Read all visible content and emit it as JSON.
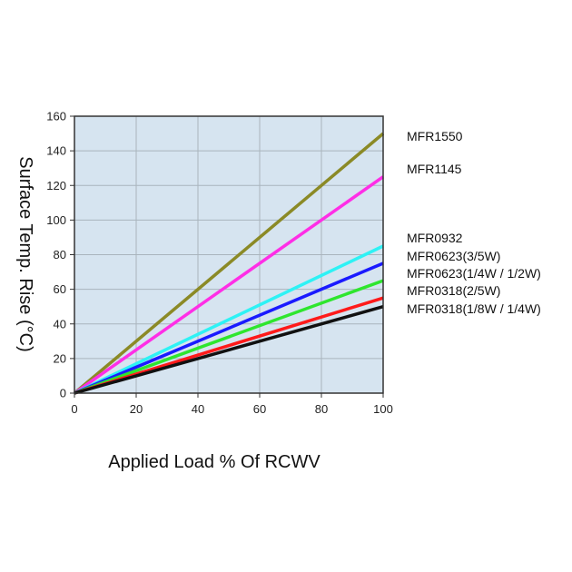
{
  "chart_data": {
    "type": "line",
    "title": "",
    "xlabel": "Applied Load % Of RCWV",
    "ylabel": "Surface Temp. Rise (°C)",
    "xlim": [
      0,
      100
    ],
    "ylim": [
      0,
      160
    ],
    "x_ticks": [
      "0",
      "20",
      "40",
      "60",
      "80",
      "100"
    ],
    "y_ticks": [
      "0",
      "20",
      "40",
      "60",
      "80",
      "100",
      "120",
      "140",
      "160"
    ],
    "grid": true,
    "legend_placement": "right",
    "plot_background": "#d6e4f0",
    "series": [
      {
        "name": "MFR1550",
        "color": "#8b8a26",
        "x": [
          0,
          100
        ],
        "y": [
          0,
          150
        ]
      },
      {
        "name": "MFR1145",
        "color": "#ff2ee6",
        "x": [
          0,
          100
        ],
        "y": [
          0,
          125
        ]
      },
      {
        "name": "MFR0932",
        "color": "#2ef2f5",
        "x": [
          0,
          100
        ],
        "y": [
          0,
          85
        ]
      },
      {
        "name": "MFR0623(3/5W)",
        "color": "#1a1aff",
        "x": [
          0,
          100
        ],
        "y": [
          0,
          75
        ]
      },
      {
        "name": "MFR0623(1/4W / 1/2W)",
        "color": "#2ee62e",
        "x": [
          0,
          100
        ],
        "y": [
          0,
          65
        ]
      },
      {
        "name": "MFR0318(2/5W)",
        "color": "#ff1a1a",
        "x": [
          0,
          100
        ],
        "y": [
          0,
          55
        ]
      },
      {
        "name": "MFR0318(1/8W / 1/4W)",
        "color": "#111111",
        "x": [
          0,
          100
        ],
        "y": [
          0,
          50
        ]
      }
    ]
  }
}
